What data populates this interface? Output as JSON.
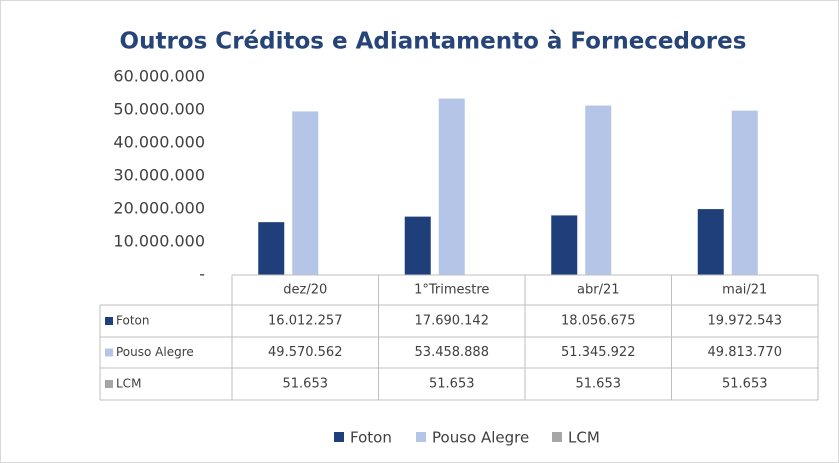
{
  "chart_data": {
    "type": "bar",
    "title": "Outros Créditos e Adiantamento à Fornecedores",
    "categories": [
      "dez/20",
      "1°Trimestre",
      "abr/21",
      "mai/21"
    ],
    "series": [
      {
        "name": "Foton",
        "color": "#1f3f7a",
        "values": [
          16012257,
          17690142,
          18056675,
          19972543
        ],
        "value_labels": [
          "16.012.257",
          "17.690.142",
          "18.056.675",
          "19.972.543"
        ]
      },
      {
        "name": "Pouso Alegre",
        "color": "#b4c5e7",
        "values": [
          49570562,
          53458888,
          51345922,
          49813770
        ],
        "value_labels": [
          "49.570.562",
          "53.458.888",
          "51.345.922",
          "49.813.770"
        ]
      },
      {
        "name": "LCM",
        "color": "#a6a6a6",
        "values": [
          51653,
          51653,
          51653,
          51653
        ],
        "value_labels": [
          "51.653",
          "51.653",
          "51.653",
          "51.653"
        ]
      }
    ],
    "ylim": [
      0,
      60000000
    ],
    "yticks": [
      {
        "value": 0,
        "label": "-"
      },
      {
        "value": 10000000,
        "label": "10.000.000"
      },
      {
        "value": 20000000,
        "label": "20.000.000"
      },
      {
        "value": 30000000,
        "label": "30.000.000"
      },
      {
        "value": 40000000,
        "label": "40.000.000"
      },
      {
        "value": 50000000,
        "label": "50.000.000"
      },
      {
        "value": 60000000,
        "label": "60.000.000"
      }
    ],
    "grid": false,
    "legend": "bottom"
  }
}
